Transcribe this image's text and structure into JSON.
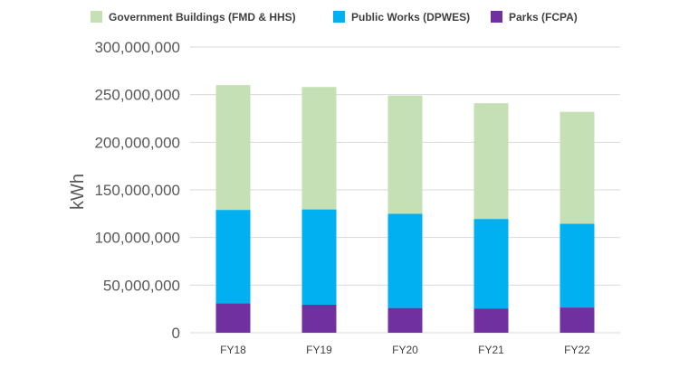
{
  "chart_data": {
    "type": "bar",
    "stacked": true,
    "title": "",
    "xlabel": "",
    "ylabel": "kWh",
    "ylim": [
      0,
      300000000
    ],
    "yticks": [
      0,
      50000000,
      100000000,
      150000000,
      200000000,
      250000000,
      300000000
    ],
    "ytick_labels": [
      "0",
      "50,000,000",
      "100,000,000",
      "150,000,000",
      "200,000,000",
      "250,000,000",
      "300,000,000"
    ],
    "categories": [
      "FY18",
      "FY19",
      "FY20",
      "FY21",
      "FY22"
    ],
    "series": [
      {
        "name": "Parks (FCPA)",
        "color": "#7030a0",
        "values": [
          31000000,
          29500000,
          26000000,
          25500000,
          26500000
        ]
      },
      {
        "name": "Public Works (DPWES)",
        "color": "#00b0f0",
        "values": [
          98000000,
          100000000,
          99000000,
          94000000,
          88000000
        ]
      },
      {
        "name": "Government Buildings (FMD & HHS)",
        "color": "#c5e0b4",
        "values": [
          131000000,
          128500000,
          124000000,
          121500000,
          117500000
        ]
      }
    ],
    "legend_order": [
      "Government Buildings (FMD & HHS)",
      "Public Works (DPWES)",
      "Parks (FCPA)"
    ],
    "legend_position": "top",
    "grid": true,
    "gridline_color": "#d9d9d9"
  }
}
